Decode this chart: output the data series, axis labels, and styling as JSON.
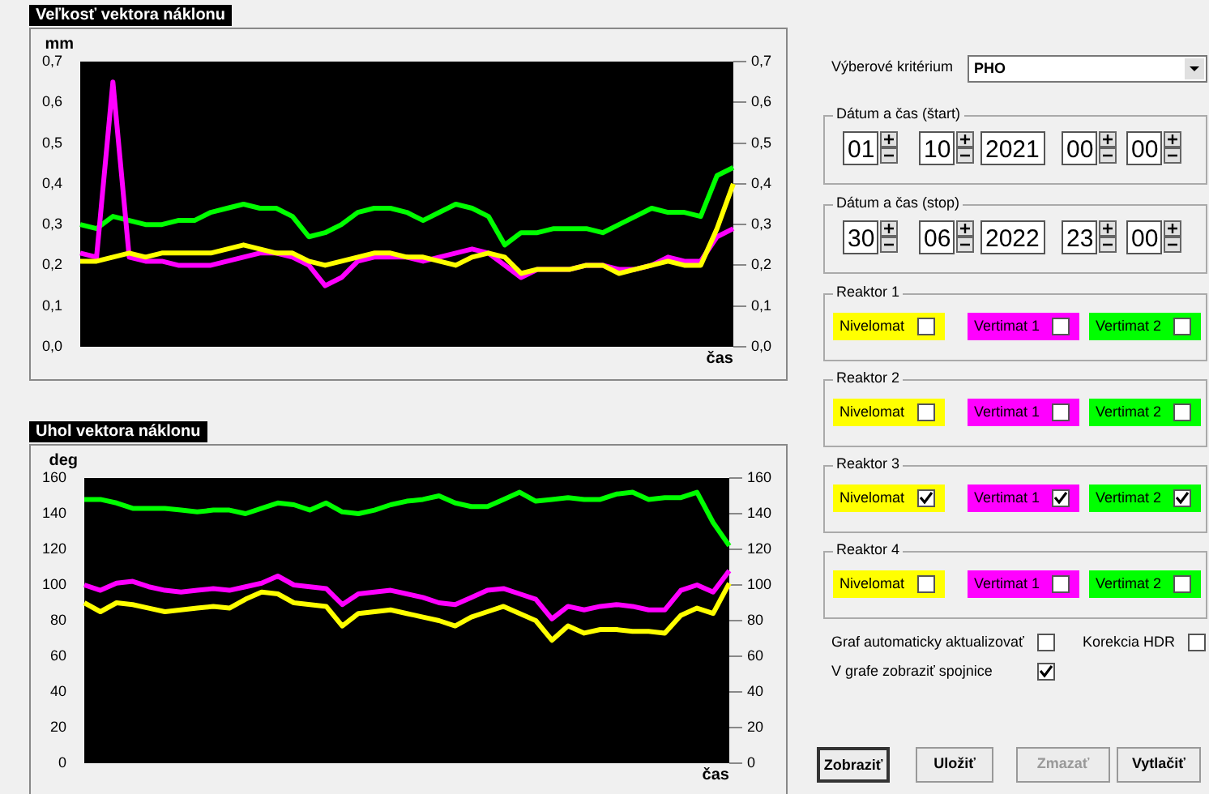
{
  "chart_data": [
    {
      "type": "line",
      "title": "Veľkosť vektora náklonu",
      "ylabel": "mm",
      "xlabel": "čas",
      "categories": [
        null,
        null,
        null,
        null,
        null,
        null,
        null,
        null,
        null,
        null,
        null,
        null,
        null,
        null,
        null,
        null,
        null,
        null,
        null,
        null,
        null,
        null,
        null,
        null,
        null,
        null,
        null,
        null,
        null,
        null,
        null,
        null,
        null,
        null,
        null,
        null,
        null,
        null,
        null,
        null,
        null
      ],
      "series": [
        {
          "color": "#00ff00",
          "values": [
            0.3,
            0.29,
            0.32,
            0.31,
            0.3,
            0.3,
            0.31,
            0.31,
            0.33,
            0.34,
            0.35,
            0.34,
            0.34,
            0.32,
            0.27,
            0.28,
            0.3,
            0.33,
            0.34,
            0.34,
            0.33,
            0.31,
            0.33,
            0.35,
            0.34,
            0.32,
            0.25,
            0.28,
            0.28,
            0.29,
            0.29,
            0.29,
            0.28,
            0.3,
            0.32,
            0.34,
            0.33,
            0.33,
            0.32,
            0.42,
            0.44
          ]
        },
        {
          "color": "#ff00ff",
          "values": [
            0.23,
            0.22,
            0.65,
            0.22,
            0.21,
            0.21,
            0.2,
            0.2,
            0.2,
            0.21,
            0.22,
            0.23,
            0.23,
            0.22,
            0.2,
            0.15,
            0.17,
            0.21,
            0.22,
            0.22,
            0.22,
            0.21,
            0.22,
            0.23,
            0.24,
            0.23,
            0.2,
            0.17,
            0.19,
            0.19,
            0.19,
            0.2,
            0.2,
            0.19,
            0.19,
            0.2,
            0.22,
            0.21,
            0.21,
            0.27,
            0.29
          ]
        },
        {
          "color": "#ffff00",
          "values": [
            0.21,
            0.21,
            0.22,
            0.23,
            0.22,
            0.23,
            0.23,
            0.23,
            0.23,
            0.24,
            0.25,
            0.24,
            0.23,
            0.23,
            0.21,
            0.2,
            0.21,
            0.22,
            0.23,
            0.23,
            0.22,
            0.22,
            0.21,
            0.2,
            0.22,
            0.23,
            0.22,
            0.18,
            0.19,
            0.19,
            0.19,
            0.2,
            0.2,
            0.18,
            0.19,
            0.2,
            0.21,
            0.2,
            0.2,
            0.29,
            0.4
          ]
        }
      ],
      "ylim": [
        0,
        0.7
      ],
      "yticks": [
        {
          "value": 0,
          "label": "0,0"
        },
        {
          "value": 0.1,
          "label": "0,1"
        },
        {
          "value": 0.2,
          "label": "0,2"
        },
        {
          "value": 0.3,
          "label": "0,3"
        },
        {
          "value": 0.4,
          "label": "0,4"
        },
        {
          "value": 0.5,
          "label": "0,5"
        },
        {
          "value": 0.6,
          "label": "0,6"
        },
        {
          "value": 0.7,
          "label": "0,7"
        }
      ],
      "y2lim": [
        0,
        0.7
      ],
      "y2ticks": [
        {
          "value": 0,
          "label": "0,0"
        },
        {
          "value": 0.1,
          "label": "0,1"
        },
        {
          "value": 0.2,
          "label": "0,2"
        },
        {
          "value": 0.3,
          "label": "0,3"
        },
        {
          "value": 0.4,
          "label": "0,4"
        },
        {
          "value": 0.5,
          "label": "0,5"
        },
        {
          "value": 0.6,
          "label": "0,6"
        },
        {
          "value": 0.7,
          "label": "0,7"
        }
      ],
      "tick_labels": "y",
      "marker": "none"
    },
    {
      "type": "line",
      "title": "Uhol vektora náklonu",
      "ylabel": "deg",
      "xlabel": "čas",
      "categories": [
        null,
        null,
        null,
        null,
        null,
        null,
        null,
        null,
        null,
        null,
        null,
        null,
        null,
        null,
        null,
        null,
        null,
        null,
        null,
        null,
        null,
        null,
        null,
        null,
        null,
        null,
        null,
        null,
        null,
        null,
        null,
        null,
        null,
        null,
        null,
        null,
        null,
        null,
        null,
        null,
        null
      ],
      "series": [
        {
          "color": "#00ff00",
          "values": [
            148,
            148,
            146,
            143,
            143,
            143,
            142,
            141,
            142,
            142,
            140,
            143,
            146,
            145,
            142,
            146,
            141,
            140,
            142,
            145,
            147,
            148,
            150,
            146,
            144,
            144,
            148,
            152,
            147,
            148,
            149,
            148,
            148,
            151,
            152,
            148,
            149,
            149,
            152,
            135,
            122
          ]
        },
        {
          "color": "#ff00ff",
          "values": [
            100,
            97,
            101,
            102,
            99,
            97,
            96,
            97,
            98,
            97,
            99,
            101,
            105,
            100,
            99,
            98,
            89,
            95,
            96,
            97,
            95,
            93,
            90,
            89,
            93,
            97,
            98,
            95,
            92,
            81,
            88,
            86,
            88,
            89,
            88,
            86,
            86,
            97,
            100,
            96,
            108
          ]
        },
        {
          "color": "#ffff00",
          "values": [
            90,
            85,
            90,
            89,
            87,
            85,
            86,
            87,
            88,
            87,
            92,
            96,
            95,
            90,
            89,
            88,
            77,
            84,
            85,
            86,
            84,
            82,
            80,
            77,
            82,
            85,
            88,
            84,
            80,
            69,
            77,
            73,
            75,
            75,
            74,
            74,
            73,
            83,
            87,
            84,
            101
          ]
        }
      ],
      "ylim": [
        0,
        160
      ],
      "yticks": [
        0,
        20,
        40,
        60,
        80,
        100,
        120,
        140,
        160
      ],
      "y2lim": [
        0,
        160
      ],
      "y2ticks": [
        0,
        20,
        40,
        60,
        80,
        100,
        120,
        140,
        160
      ],
      "tick_labels": "y",
      "marker": "none"
    },
    {
      "type": "other",
      "annotations": [
        "Výberové kritérium",
        "PHO",
        "Dátum a čas (štart)",
        "01",
        "10",
        "2021",
        "00",
        "00",
        "Dátum a čas (stop)",
        "30",
        "06",
        "2022",
        "23",
        "00",
        "Reaktor 1",
        "Nivelomat",
        "Vertimat 1",
        "Vertimat 2",
        "Reaktor 2",
        "Nivelomat",
        "Vertimat 1",
        "Vertimat 2",
        "Reaktor 3",
        "Nivelomat",
        "Vertimat 1",
        "Vertimat 2",
        "Reaktor 4",
        "Nivelomat",
        "Vertimat 1",
        "Vertimat 2",
        "Graf automaticky aktualizovať",
        "Korekcia HDR",
        "V grafe zobraziť spojnice",
        "Zobraziť",
        "Uložiť",
        "Zmazať",
        "Vytlačiť"
      ]
    }
  ]
}
